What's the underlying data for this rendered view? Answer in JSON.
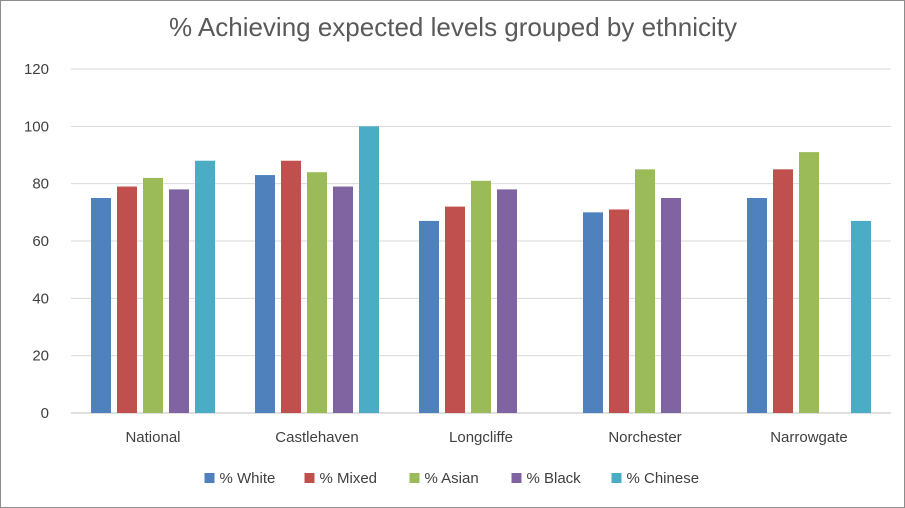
{
  "chart_data": {
    "type": "bar",
    "title": "% Achieving expected levels grouped by ethnicity",
    "xlabel": "",
    "ylabel": "",
    "ylim": [
      0,
      120
    ],
    "yticks": [
      0,
      20,
      40,
      60,
      80,
      100,
      120
    ],
    "grid": true,
    "legend_position": "bottom",
    "categories": [
      "National",
      "Castlehaven",
      "Longcliffe",
      "Norchester",
      "Narrowgate"
    ],
    "series": [
      {
        "name": "% White",
        "color": "#4f81bd",
        "values": [
          75,
          83,
          67,
          70,
          75
        ]
      },
      {
        "name": "% Mixed",
        "color": "#c0504d",
        "values": [
          79,
          88,
          72,
          71,
          85
        ]
      },
      {
        "name": "% Asian",
        "color": "#9bbb59",
        "values": [
          82,
          84,
          81,
          85,
          91
        ]
      },
      {
        "name": "% Black",
        "color": "#8064a2",
        "values": [
          78,
          79,
          78,
          75,
          null
        ]
      },
      {
        "name": "% Chinese",
        "color": "#4bacc6",
        "values": [
          88,
          100,
          null,
          null,
          67
        ]
      }
    ]
  }
}
